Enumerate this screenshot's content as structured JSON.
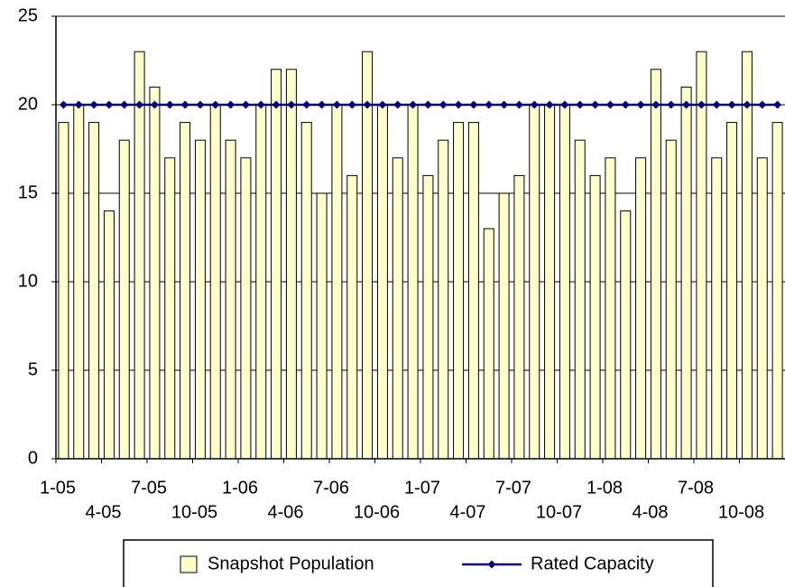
{
  "chart_data": {
    "type": "bar",
    "categories": [
      "1-05",
      null,
      null,
      "4-05",
      null,
      null,
      "7-05",
      null,
      null,
      "10-05",
      null,
      null,
      "1-06",
      null,
      null,
      "4-06",
      null,
      null,
      "7-06",
      null,
      null,
      "10-06",
      null,
      null,
      "1-07",
      null,
      null,
      "4-07",
      null,
      null,
      "7-07",
      null,
      null,
      "10-07",
      null,
      null,
      "1-08",
      null,
      null,
      "4-08",
      null,
      null,
      "7-08",
      null,
      null,
      "10-08",
      null,
      null
    ],
    "series": [
      {
        "name": "Snapshot Population",
        "type": "bar",
        "color": "#ffffcc",
        "values": [
          19,
          20,
          19,
          14,
          18,
          23,
          21,
          17,
          19,
          18,
          20,
          18,
          17,
          20,
          22,
          22,
          19,
          15,
          20,
          16,
          23,
          20,
          17,
          20,
          16,
          18,
          19,
          19,
          13,
          15,
          16,
          20,
          20,
          20,
          18,
          16,
          17,
          14,
          17,
          22,
          18,
          21,
          23,
          17,
          19,
          23,
          17,
          19
        ]
      },
      {
        "name": "Rated Capacity",
        "type": "line",
        "color": "#000080",
        "values": [
          20,
          20,
          20,
          20,
          20,
          20,
          20,
          20,
          20,
          20,
          20,
          20,
          20,
          20,
          20,
          20,
          20,
          20,
          20,
          20,
          20,
          20,
          20,
          20,
          20,
          20,
          20,
          20,
          20,
          20,
          20,
          20,
          20,
          20,
          20,
          20,
          20,
          20,
          20,
          20,
          20,
          20,
          20,
          20,
          20,
          20,
          20,
          20
        ]
      }
    ],
    "ylim": [
      0,
      25
    ],
    "yticks": [
      0,
      5,
      10,
      15,
      20,
      25
    ],
    "grid": true,
    "legend": "bottom"
  }
}
